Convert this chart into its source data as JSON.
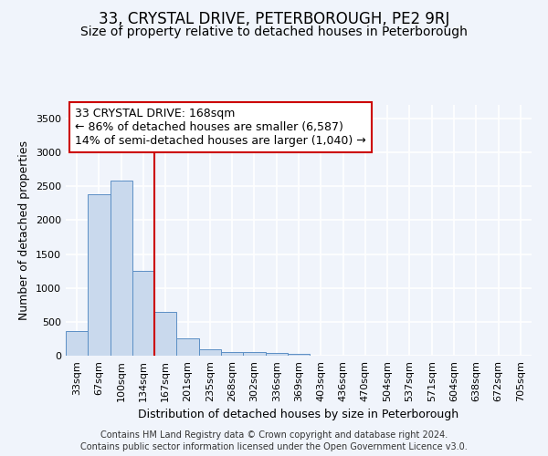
{
  "title": "33, CRYSTAL DRIVE, PETERBOROUGH, PE2 9RJ",
  "subtitle": "Size of property relative to detached houses in Peterborough",
  "xlabel": "Distribution of detached houses by size in Peterborough",
  "ylabel": "Number of detached properties",
  "footnote1": "Contains HM Land Registry data © Crown copyright and database right 2024.",
  "footnote2": "Contains public sector information licensed under the Open Government Licence v3.0.",
  "property_label": "33 CRYSTAL DRIVE: 168sqm",
  "annotation_line1": "← 86% of detached houses are smaller (6,587)",
  "annotation_line2": "14% of semi-detached houses are larger (1,040) →",
  "bar_color": "#c9d9ed",
  "bar_edge_color": "#5b8fc5",
  "vline_color": "#cc0000",
  "annotation_box_edge_color": "#cc0000",
  "background_color": "#f0f4fb",
  "grid_color": "#ffffff",
  "categories": [
    "33sqm",
    "67sqm",
    "100sqm",
    "134sqm",
    "167sqm",
    "201sqm",
    "235sqm",
    "268sqm",
    "302sqm",
    "336sqm",
    "369sqm",
    "403sqm",
    "436sqm",
    "470sqm",
    "504sqm",
    "537sqm",
    "571sqm",
    "604sqm",
    "638sqm",
    "672sqm",
    "705sqm"
  ],
  "values": [
    370,
    2380,
    2590,
    1250,
    640,
    250,
    100,
    60,
    50,
    40,
    30,
    0,
    0,
    0,
    0,
    0,
    0,
    0,
    0,
    0,
    0
  ],
  "ylim": [
    0,
    3700
  ],
  "yticks": [
    0,
    500,
    1000,
    1500,
    2000,
    2500,
    3000,
    3500
  ],
  "vline_x_index": 4,
  "title_fontsize": 12,
  "subtitle_fontsize": 10,
  "annotation_fontsize": 9,
  "axis_label_fontsize": 9,
  "tick_fontsize": 8,
  "footnote_fontsize": 7
}
